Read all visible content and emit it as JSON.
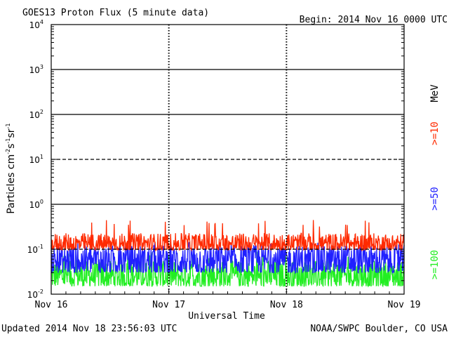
{
  "chart_data": {
    "type": "line",
    "title": "GOES13 Proton Flux (5 minute data)",
    "begin_label": "Begin: 2014 Nov 16 0000 UTC",
    "xlabel": "Universal Time",
    "ylabel": {
      "prefix": "Particles cm",
      "exp1": "-2",
      "mid1": "s",
      "exp2": "-1",
      "mid2": "sr",
      "exp3": "-1"
    },
    "y_scale": "log",
    "ylim": [
      0.01,
      10000
    ],
    "y_ticks": [
      {
        "base": "10",
        "exp": "4"
      },
      {
        "base": "10",
        "exp": "3"
      },
      {
        "base": "10",
        "exp": "2"
      },
      {
        "base": "10",
        "exp": "1"
      },
      {
        "base": "10",
        "exp": "0"
      },
      {
        "base": "10",
        "exp": "-1"
      },
      {
        "base": "10",
        "exp": "-2"
      }
    ],
    "x_ticks": [
      "Nov 16",
      "Nov 17",
      "Nov 18",
      "Nov 19"
    ],
    "x_range_days": [
      0,
      3
    ],
    "reference_lines": [
      {
        "value": 1000,
        "style": "solid"
      },
      {
        "value": 100,
        "style": "solid"
      },
      {
        "value": 10,
        "style": "dashed"
      },
      {
        "value": 1,
        "style": "solid"
      },
      {
        "value": 0.1,
        "style": "dashed"
      }
    ],
    "series": [
      {
        "name": ">=10",
        "color": "#ff2a00",
        "baseline": 0.12,
        "spread_low": 0.8,
        "spread_high": 1.9,
        "peak": 0.45
      },
      {
        "name": ">=50",
        "color": "#2020ff",
        "baseline": 0.05,
        "spread_low": 0.6,
        "spread_high": 2.5,
        "peak": 0.15
      },
      {
        "name": ">=100",
        "color": "#22ee22",
        "baseline": 0.025,
        "spread_low": 0.6,
        "spread_high": 2.2,
        "peak": 0.09
      }
    ],
    "legend_unit": "MeV",
    "updated": "Updated 2014 Nov 18 23:56:03 UTC",
    "credit": "NOAA/SWPC Boulder, CO USA"
  }
}
